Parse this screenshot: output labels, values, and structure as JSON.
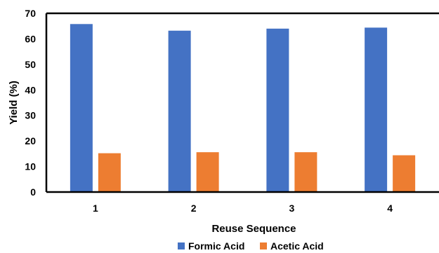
{
  "chart_data": {
    "type": "bar",
    "categories": [
      "1",
      "2",
      "3",
      "4"
    ],
    "series": [
      {
        "name": "Formic Acid",
        "values": [
          65.8,
          63.2,
          64.0,
          64.4
        ],
        "color": "#4472C4"
      },
      {
        "name": "Acetic Acid",
        "values": [
          15.2,
          15.6,
          15.6,
          14.4
        ],
        "color": "#ED7D31"
      }
    ],
    "title": "",
    "xlabel": "Reuse Sequence",
    "ylabel": "Yield (%)",
    "ylim": [
      0,
      70
    ],
    "yticks": [
      0,
      10,
      20,
      30,
      40,
      50,
      60,
      70
    ],
    "grid": false,
    "legend": "bottom-center"
  }
}
